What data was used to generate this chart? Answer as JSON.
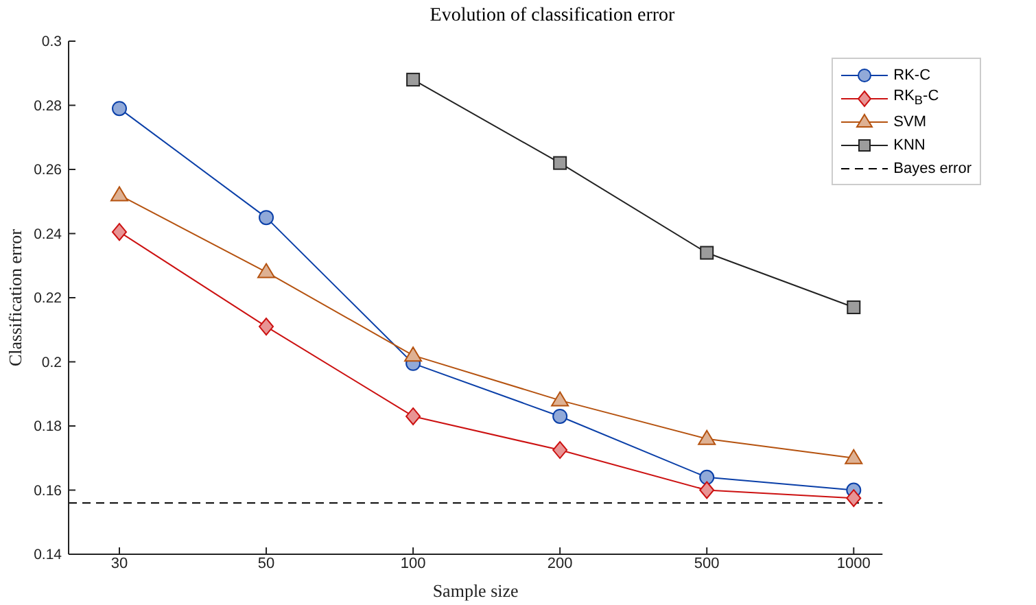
{
  "chart_data": {
    "type": "line",
    "title": "Evolution of classification error",
    "xlabel": "Sample size",
    "ylabel": "Classification error",
    "categories": [
      "30",
      "50",
      "100",
      "200",
      "500",
      "1000"
    ],
    "series": [
      {
        "name": "RK-C",
        "color": "#0a3fa8",
        "marker": "circle",
        "values": [
          0.279,
          0.245,
          0.1995,
          0.183,
          0.164,
          0.16
        ]
      },
      {
        "name": "RK$_{B}$-C",
        "color": "#cc1111",
        "marker": "diamond",
        "values": [
          0.2405,
          0.211,
          0.183,
          0.1725,
          0.16,
          0.1575
        ]
      },
      {
        "name": "SVM",
        "color": "#b5520f",
        "marker": "triangle",
        "values": [
          0.252,
          0.228,
          0.202,
          0.188,
          0.176,
          0.17
        ]
      },
      {
        "name": "KNN",
        "color": "#222222",
        "marker": "square",
        "values": [
          null,
          null,
          0.288,
          0.262,
          0.234,
          0.217
        ]
      }
    ],
    "ref_lines": [
      {
        "axis": "y",
        "value": 0.156,
        "label": "Bayes error",
        "color": "#000000",
        "line_style": "dashed"
      }
    ],
    "ylim": [
      0.14,
      0.3
    ],
    "yticks": [
      0.14,
      0.16,
      0.18,
      0.2,
      0.22,
      0.24,
      0.26,
      0.28,
      0.3
    ],
    "legend": "top right",
    "line_style": "solid"
  }
}
